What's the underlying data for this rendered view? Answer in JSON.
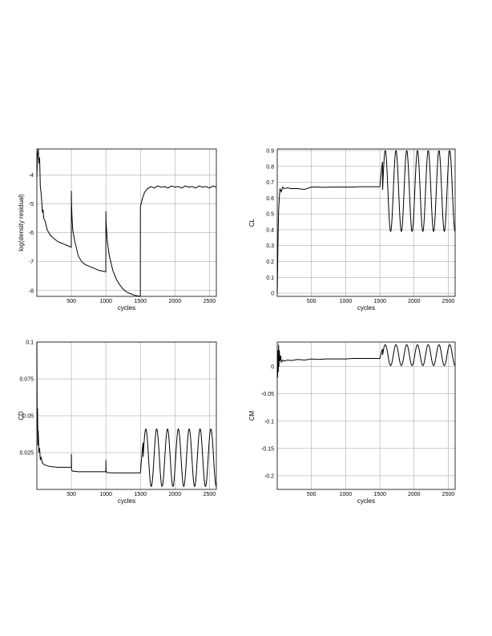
{
  "chart_data": [
    {
      "type": "line",
      "title": "",
      "xlabel": "cycles",
      "ylabel": "log(density residual)",
      "xlim": [
        0,
        2600
      ],
      "ylim": [
        -8.2,
        -3.1
      ],
      "xticks": [
        500,
        1000,
        1500,
        2000,
        2500
      ],
      "yticks": [
        -8,
        -7,
        -6,
        -5,
        -4
      ],
      "ytick_labels": [
        "-8",
        "-7",
        "-6",
        "-5",
        "-4"
      ],
      "grid": true,
      "series": [
        {
          "x": [
            0,
            10,
            20,
            30,
            40,
            50,
            60,
            70,
            80,
            90,
            100,
            120,
            150,
            200,
            250,
            300,
            350,
            400,
            450,
            499,
            500,
            502,
            510,
            520,
            550,
            600,
            650,
            700,
            800,
            900,
            999,
            1000,
            1002,
            1010,
            1020,
            1050,
            1100,
            1150,
            1200,
            1250,
            1300,
            1350,
            1400,
            1450,
            1499,
            1500,
            1510,
            1530,
            1560,
            1600,
            1650,
            1700,
            1750,
            1800,
            1850,
            1900,
            1950,
            2000,
            2050,
            2100,
            2150,
            2200,
            2250,
            2300,
            2350,
            2400,
            2450,
            2500,
            2550,
            2600
          ],
          "y": [
            -4.1,
            -3.3,
            -3.1,
            -3.6,
            -3.4,
            -4.4,
            -4.6,
            -4.9,
            -5.3,
            -5.2,
            -5.5,
            -5.6,
            -5.9,
            -6.1,
            -6.2,
            -6.3,
            -6.35,
            -6.4,
            -6.45,
            -6.5,
            -4.55,
            -5.0,
            -5.5,
            -5.9,
            -6.3,
            -6.8,
            -7.0,
            -7.1,
            -7.2,
            -7.3,
            -7.35,
            -5.25,
            -5.6,
            -5.9,
            -6.3,
            -6.8,
            -7.3,
            -7.6,
            -7.8,
            -7.95,
            -8.05,
            -8.1,
            -8.15,
            -8.18,
            -8.2,
            -5.1,
            -5.0,
            -4.8,
            -4.6,
            -4.48,
            -4.4,
            -4.45,
            -4.38,
            -4.42,
            -4.4,
            -4.45,
            -4.38,
            -4.42,
            -4.4,
            -4.45,
            -4.38,
            -4.42,
            -4.4,
            -4.45,
            -4.38,
            -4.42,
            -4.4,
            -4.45,
            -4.38,
            -4.42
          ]
        }
      ]
    },
    {
      "type": "line",
      "title": "",
      "xlabel": "cycles",
      "ylabel": "CL",
      "xlim": [
        0,
        2600
      ],
      "ylim": [
        -0.02,
        0.91
      ],
      "xticks": [
        500,
        1000,
        1500,
        2000,
        2500
      ],
      "yticks": [
        0,
        0.1,
        0.2,
        0.3,
        0.4,
        0.5,
        0.6,
        0.7,
        0.8,
        0.9
      ],
      "ytick_labels": [
        "0",
        "0.1",
        "0.2",
        "0.3",
        "0.4",
        "0.5",
        "0.6",
        "0.7",
        "0.8",
        "0.9"
      ],
      "grid": true,
      "series": [
        {
          "x": [
            0,
            10,
            20,
            30,
            40,
            60,
            80,
            100,
            150,
            200,
            300,
            400,
            500,
            600,
            700,
            800,
            900,
            1000,
            1100,
            1200,
            1300,
            1400,
            1500
          ],
          "y": [
            0.0,
            0.3,
            0.52,
            0.6,
            0.66,
            0.64,
            0.67,
            0.66,
            0.665,
            0.66,
            0.66,
            0.655,
            0.67,
            0.67,
            0.668,
            0.67,
            0.67,
            0.67,
            0.67,
            0.672,
            0.672,
            0.672,
            0.672
          ]
        }
      ],
      "oscillation": {
        "x_start": 1500,
        "x_end": 2600,
        "min": 0.39,
        "max": 0.9,
        "period": 157
      }
    },
    {
      "type": "line",
      "title": "",
      "xlabel": "cycles",
      "ylabel": "CD",
      "xlim": [
        0,
        2600
      ],
      "ylim": [
        0.0,
        0.1
      ],
      "xticks": [
        500,
        1000,
        1500,
        2000,
        2500
      ],
      "yticks": [
        0.025,
        0.05,
        0.075,
        0.1
      ],
      "ytick_labels": [
        "0.025",
        "0.05",
        "0.075",
        "0.1"
      ],
      "grid": true,
      "series": [
        {
          "x": [
            0,
            5,
            10,
            15,
            20,
            30,
            40,
            50,
            60,
            80,
            100,
            150,
            200,
            300,
            400,
            499,
            500,
            502,
            510,
            600,
            700,
            800,
            999,
            1000,
            1002,
            1010,
            1100,
            1200,
            1300,
            1400,
            1500
          ],
          "y": [
            0.1,
            0.04,
            0.055,
            0.03,
            0.04,
            0.025,
            0.028,
            0.02,
            0.022,
            0.018,
            0.017,
            0.016,
            0.0155,
            0.015,
            0.015,
            0.015,
            0.024,
            0.014,
            0.0125,
            0.012,
            0.012,
            0.012,
            0.012,
            0.02,
            0.013,
            0.0115,
            0.0112,
            0.0112,
            0.0112,
            0.0112,
            0.0112
          ]
        }
      ],
      "oscillation": {
        "x_start": 1500,
        "x_end": 2600,
        "min": 0.002,
        "max": 0.041,
        "period": 157
      }
    },
    {
      "type": "line",
      "title": "",
      "xlabel": "cycles",
      "ylabel": "CM",
      "xlim": [
        0,
        2600
      ],
      "ylim": [
        -0.225,
        0.045
      ],
      "xticks": [
        500,
        1000,
        1500,
        2000,
        2500
      ],
      "yticks": [
        -0.2,
        -0.15,
        -0.1,
        -0.05,
        0
      ],
      "ytick_labels": [
        "-0.2",
        "-0.15",
        "-0.1",
        "-0.05",
        "0"
      ],
      "grid": true,
      "series": [
        {
          "x": [
            0,
            5,
            10,
            15,
            20,
            25,
            30,
            40,
            50,
            60,
            80,
            100,
            150,
            200,
            300,
            400,
            500,
            600,
            700,
            800,
            900,
            1000,
            1100,
            1200,
            1300,
            1400,
            1500
          ],
          "y": [
            0.0,
            -0.02,
            0.03,
            -0.01,
            0.04,
            0.0,
            0.03,
            0.01,
            0.02,
            0.008,
            0.012,
            0.01,
            0.012,
            0.011,
            0.013,
            0.012,
            0.014,
            0.013,
            0.014,
            0.014,
            0.014,
            0.014,
            0.015,
            0.015,
            0.015,
            0.015,
            0.015
          ]
        }
      ],
      "oscillation": {
        "x_start": 1500,
        "x_end": 2600,
        "min": 0.002,
        "max": 0.04,
        "period": 157
      }
    }
  ]
}
